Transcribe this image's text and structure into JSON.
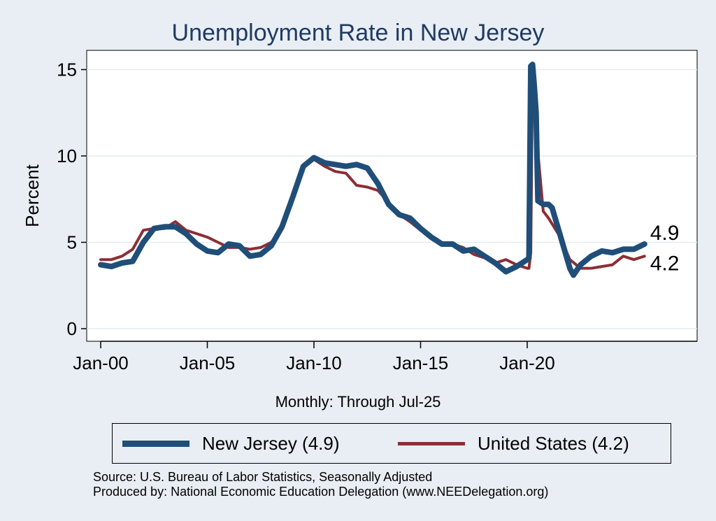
{
  "chart_data": {
    "type": "line",
    "title": "Unemployment Rate in New Jersey",
    "xlabel": "Monthly: Through Jul-25",
    "ylabel": "Percent",
    "ylim": [
      0,
      16
    ],
    "xlim": [
      "2000-01",
      "2028-01"
    ],
    "x_ticks": [
      "Jan-00",
      "Jan-05",
      "Jan-10",
      "Jan-15",
      "Jan-20"
    ],
    "y_ticks": [
      0,
      5,
      10,
      15
    ],
    "grid": true,
    "legend_position": "bottom",
    "series": [
      {
        "name": "New Jersey (4.9)",
        "color": "#1f4e79",
        "end_label": "4.9",
        "points": [
          [
            "2000-01",
            3.7
          ],
          [
            "2000-07",
            3.6
          ],
          [
            "2001-01",
            3.8
          ],
          [
            "2001-07",
            3.9
          ],
          [
            "2002-01",
            5.0
          ],
          [
            "2002-07",
            5.8
          ],
          [
            "2003-01",
            5.9
          ],
          [
            "2003-07",
            5.9
          ],
          [
            "2004-01",
            5.5
          ],
          [
            "2004-07",
            4.9
          ],
          [
            "2005-01",
            4.5
          ],
          [
            "2005-07",
            4.4
          ],
          [
            "2006-01",
            4.9
          ],
          [
            "2006-07",
            4.8
          ],
          [
            "2007-01",
            4.2
          ],
          [
            "2007-07",
            4.3
          ],
          [
            "2008-01",
            4.8
          ],
          [
            "2008-07",
            5.9
          ],
          [
            "2009-01",
            7.6
          ],
          [
            "2009-07",
            9.4
          ],
          [
            "2010-01",
            9.9
          ],
          [
            "2010-07",
            9.6
          ],
          [
            "2011-01",
            9.5
          ],
          [
            "2011-07",
            9.4
          ],
          [
            "2012-01",
            9.5
          ],
          [
            "2012-07",
            9.3
          ],
          [
            "2013-01",
            8.4
          ],
          [
            "2013-07",
            7.2
          ],
          [
            "2014-01",
            6.6
          ],
          [
            "2014-07",
            6.4
          ],
          [
            "2015-01",
            5.8
          ],
          [
            "2015-07",
            5.3
          ],
          [
            "2016-01",
            4.9
          ],
          [
            "2016-07",
            4.9
          ],
          [
            "2017-01",
            4.5
          ],
          [
            "2017-07",
            4.6
          ],
          [
            "2018-01",
            4.2
          ],
          [
            "2018-07",
            3.8
          ],
          [
            "2019-01",
            3.3
          ],
          [
            "2019-07",
            3.6
          ],
          [
            "2020-01",
            4.0
          ],
          [
            "2020-02",
            4.1
          ],
          [
            "2020-03",
            15.2
          ],
          [
            "2020-04",
            15.3
          ],
          [
            "2020-05",
            14.0
          ],
          [
            "2020-06",
            12.5
          ],
          [
            "2020-07",
            7.4
          ],
          [
            "2020-10",
            7.2
          ],
          [
            "2021-01",
            7.2
          ],
          [
            "2021-03",
            7.0
          ],
          [
            "2021-07",
            5.6
          ],
          [
            "2022-01",
            3.5
          ],
          [
            "2022-03",
            3.1
          ],
          [
            "2022-07",
            3.7
          ],
          [
            "2023-01",
            4.2
          ],
          [
            "2023-07",
            4.5
          ],
          [
            "2024-01",
            4.4
          ],
          [
            "2024-07",
            4.6
          ],
          [
            "2025-01",
            4.6
          ],
          [
            "2025-07",
            4.9
          ]
        ]
      },
      {
        "name": "United States (4.2)",
        "color": "#8b2f35",
        "end_label": "4.2",
        "points": [
          [
            "2000-01",
            4.0
          ],
          [
            "2000-07",
            4.0
          ],
          [
            "2001-01",
            4.2
          ],
          [
            "2001-07",
            4.6
          ],
          [
            "2002-01",
            5.7
          ],
          [
            "2002-07",
            5.8
          ],
          [
            "2003-01",
            5.8
          ],
          [
            "2003-07",
            6.2
          ],
          [
            "2004-01",
            5.7
          ],
          [
            "2004-07",
            5.5
          ],
          [
            "2005-01",
            5.3
          ],
          [
            "2005-07",
            5.0
          ],
          [
            "2006-01",
            4.7
          ],
          [
            "2006-07",
            4.7
          ],
          [
            "2007-01",
            4.6
          ],
          [
            "2007-07",
            4.7
          ],
          [
            "2008-01",
            5.0
          ],
          [
            "2008-07",
            5.8
          ],
          [
            "2009-01",
            7.8
          ],
          [
            "2009-07",
            9.5
          ],
          [
            "2010-01",
            9.8
          ],
          [
            "2010-07",
            9.4
          ],
          [
            "2011-01",
            9.1
          ],
          [
            "2011-07",
            9.0
          ],
          [
            "2012-01",
            8.3
          ],
          [
            "2012-07",
            8.2
          ],
          [
            "2013-01",
            8.0
          ],
          [
            "2013-07",
            7.3
          ],
          [
            "2014-01",
            6.6
          ],
          [
            "2014-07",
            6.2
          ],
          [
            "2015-01",
            5.7
          ],
          [
            "2015-07",
            5.2
          ],
          [
            "2016-01",
            4.9
          ],
          [
            "2016-07",
            4.9
          ],
          [
            "2017-01",
            4.7
          ],
          [
            "2017-07",
            4.3
          ],
          [
            "2018-01",
            4.1
          ],
          [
            "2018-07",
            3.8
          ],
          [
            "2019-01",
            4.0
          ],
          [
            "2019-07",
            3.7
          ],
          [
            "2020-01",
            3.5
          ],
          [
            "2020-02",
            3.5
          ],
          [
            "2020-03",
            4.4
          ],
          [
            "2020-04",
            14.8
          ],
          [
            "2020-05",
            13.2
          ],
          [
            "2020-06",
            11.0
          ],
          [
            "2020-07",
            10.2
          ],
          [
            "2020-10",
            6.8
          ],
          [
            "2021-01",
            6.4
          ],
          [
            "2021-07",
            5.4
          ],
          [
            "2022-01",
            4.0
          ],
          [
            "2022-07",
            3.5
          ],
          [
            "2023-01",
            3.5
          ],
          [
            "2023-07",
            3.6
          ],
          [
            "2024-01",
            3.7
          ],
          [
            "2024-07",
            4.2
          ],
          [
            "2025-01",
            4.0
          ],
          [
            "2025-07",
            4.2
          ]
        ]
      }
    ]
  },
  "legend": {
    "nj_label": "New Jersey (4.9)",
    "us_label": "United States (4.2)",
    "nj_color": "#1f4e79",
    "us_color": "#8b2f35"
  },
  "source_line": "Source: U.S. Bureau of Labor Statistics, Seasonally Adjusted",
  "produced_line": "Produced by: National Economic Education Delegation (www.NEEDelegation.org)",
  "colors": {
    "background": "#e8eef3",
    "plot_background": "#ffffff",
    "title": "#1f3a64"
  }
}
